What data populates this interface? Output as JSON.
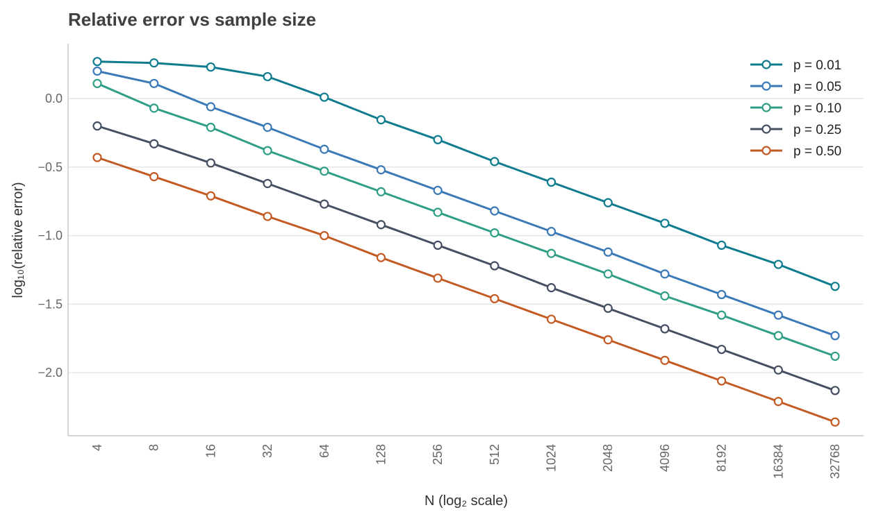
{
  "chart_data": {
    "type": "line",
    "title": "Relative error vs sample size",
    "xlabel": "N (log₂ scale)",
    "ylabel": "log₁₀(relative error)",
    "x": [
      4,
      8,
      16,
      32,
      64,
      128,
      256,
      512,
      1024,
      2048,
      4096,
      8192,
      16384,
      32768
    ],
    "x_tick_labels": [
      "4",
      "8",
      "16",
      "32",
      "64",
      "128",
      "256",
      "512",
      "1024",
      "2048",
      "4096",
      "8192",
      "16384",
      "32768"
    ],
    "x_scale": "log2",
    "y_ticks": [
      0.0,
      -0.5,
      -1.0,
      -1.5,
      -2.0
    ],
    "y_tick_labels": [
      "0.0",
      "−0.5",
      "−1.0",
      "−1.5",
      "−2.0"
    ],
    "ylim": [
      -2.46,
      0.4
    ],
    "grid": "horizontal",
    "legend_position": "top-right",
    "series": [
      {
        "name": "p = 0.01",
        "color": "#0e7c8e",
        "values": [
          0.27,
          0.26,
          0.23,
          0.16,
          0.01,
          -0.155,
          -0.3,
          -0.46,
          -0.61,
          -0.76,
          -0.91,
          -1.07,
          -1.21,
          -1.37
        ]
      },
      {
        "name": "p = 0.05",
        "color": "#3a79b6",
        "values": [
          0.2,
          0.11,
          -0.06,
          -0.21,
          -0.37,
          -0.52,
          -0.67,
          -0.82,
          -0.97,
          -1.12,
          -1.28,
          -1.43,
          -1.58,
          -1.73
        ]
      },
      {
        "name": "p = 0.10",
        "color": "#2f9e86",
        "values": [
          0.11,
          -0.07,
          -0.21,
          -0.38,
          -0.53,
          -0.68,
          -0.83,
          -0.98,
          -1.13,
          -1.28,
          -1.44,
          -1.58,
          -1.73,
          -1.88
        ]
      },
      {
        "name": "p = 0.25",
        "color": "#454f62",
        "values": [
          -0.2,
          -0.33,
          -0.47,
          -0.62,
          -0.77,
          -0.92,
          -1.07,
          -1.22,
          -1.38,
          -1.53,
          -1.68,
          -1.83,
          -1.98,
          -2.13
        ]
      },
      {
        "name": "p = 0.50",
        "color": "#c45a23",
        "values": [
          -0.43,
          -0.57,
          -0.71,
          -0.86,
          -1.0,
          -1.16,
          -1.31,
          -1.46,
          -1.61,
          -1.76,
          -1.91,
          -2.06,
          -2.21,
          -2.36
        ]
      }
    ]
  }
}
